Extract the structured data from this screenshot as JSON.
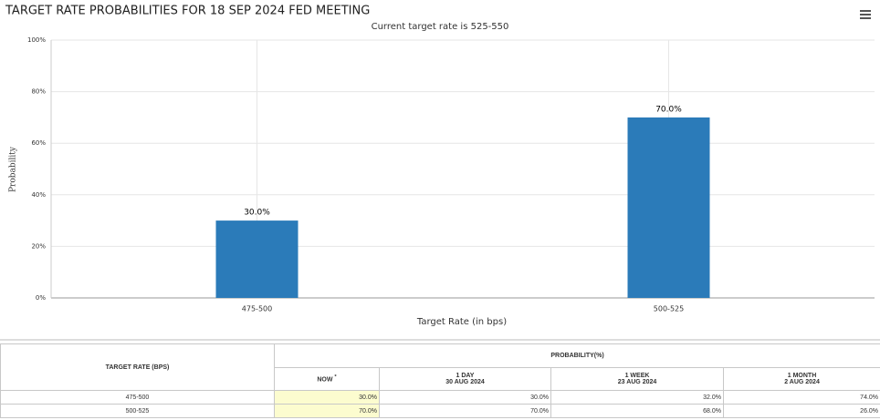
{
  "chart_data": {
    "type": "bar",
    "title": "TARGET RATE PROBABILITIES FOR 18 SEP 2024 FED MEETING",
    "subtitle": "Current target rate is 525-550",
    "y_label": "Probability",
    "x_label": "Target Rate (in bps)",
    "categories": [
      "475-500",
      "500-525"
    ],
    "values": [
      30,
      70
    ],
    "value_labels": [
      "30.0%",
      "70.0%"
    ],
    "color": "#2b7bb9",
    "ylim": [
      0,
      100
    ],
    "yticks": [
      {
        "value": 0,
        "label": "0%"
      },
      {
        "value": 20,
        "label": "20%"
      },
      {
        "value": 40,
        "label": "40%"
      },
      {
        "value": 60,
        "label": "60%"
      },
      {
        "value": 80,
        "label": "80%"
      },
      {
        "value": 100,
        "label": "100%"
      }
    ],
    "grid": true
  },
  "table": {
    "row_header": "TARGET RATE (BPS)",
    "group_header": "PROBABILITY(%)",
    "columns": [
      {
        "label": "NOW",
        "mark": "*"
      },
      {
        "label": "1 DAY",
        "date": "30 AUG 2024"
      },
      {
        "label": "1 WEEK",
        "date": "23 AUG 2024"
      },
      {
        "label": "1 MONTH",
        "date": "2 AUG 2024"
      }
    ],
    "rows": [
      [
        "475-500",
        "30.0%",
        "30.0%",
        "32.0%",
        "74.0%"
      ],
      [
        "500-525",
        "70.0%",
        "70.0%",
        "68.0%",
        "26.0%"
      ]
    ]
  }
}
